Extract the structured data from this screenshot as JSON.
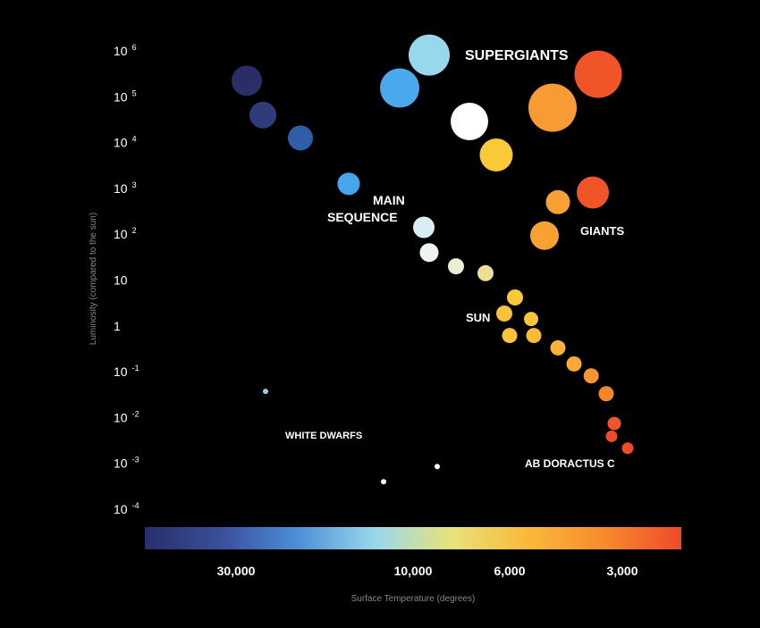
{
  "chart_data": {
    "type": "scatter",
    "title": "",
    "xlabel": "Surface Temperature (degrees)",
    "ylabel": "Luminosity (compared to the sun)",
    "y_scale": "log",
    "ylim_log10": [
      -4,
      6
    ],
    "y_ticks": [
      {
        "base": "10",
        "exp": "6"
      },
      {
        "base": "10",
        "exp": "5"
      },
      {
        "base": "10",
        "exp": "4"
      },
      {
        "base": "10",
        "exp": "3"
      },
      {
        "base": "10",
        "exp": "2"
      },
      {
        "base": "10",
        "exp": ""
      },
      {
        "base": "1",
        "exp": ""
      },
      {
        "base": "10",
        "exp": "-1"
      },
      {
        "base": "10",
        "exp": "-2"
      },
      {
        "base": "10",
        "exp": "-3"
      },
      {
        "base": "10",
        "exp": "-4"
      }
    ],
    "x_scale": "color-index",
    "x_ticks": [
      "30,000",
      "10,000",
      "6,000",
      "3,000"
    ],
    "x_tick_positions": [
      0.17,
      0.5,
      0.68,
      0.89
    ],
    "colorbar": [
      "#2a2e6b",
      "#3a4f9c",
      "#4d8fd6",
      "#98d8ec",
      "#e8e27a",
      "#f9b93a",
      "#f78a2e",
      "#ef4a2a"
    ],
    "labels": {
      "supergiants": "SUPERGIANTS",
      "main_sequence_line1": "MAIN",
      "main_sequence_line2": "SEQUENCE",
      "giants": "GIANTS",
      "sun": "SUN",
      "white_dwarfs": "WHITE DWARFS",
      "ab_doractus_c": "AB DORACTUS C"
    },
    "series": [
      {
        "name": "Main Sequence",
        "points": [
          {
            "t": 0.19,
            "logL": 5.35,
            "size": 17,
            "color": "#2b2e66"
          },
          {
            "t": 0.22,
            "logL": 4.6,
            "size": 15,
            "color": "#2f3b7a"
          },
          {
            "t": 0.29,
            "logL": 4.1,
            "size": 14,
            "color": "#2f5da8"
          },
          {
            "t": 0.38,
            "logL": 3.1,
            "size": 12.5,
            "color": "#46a6ec"
          },
          {
            "t": 0.52,
            "logL": 2.15,
            "size": 12,
            "color": "#d8eef6"
          },
          {
            "t": 0.53,
            "logL": 1.6,
            "size": 10.5,
            "color": "#eef4f2"
          },
          {
            "t": 0.58,
            "logL": 1.3,
            "size": 9,
            "color": "#eeeed6"
          },
          {
            "t": 0.635,
            "logL": 1.15,
            "size": 9,
            "color": "#ecdf96"
          },
          {
            "t": 0.69,
            "logL": 0.62,
            "size": 9,
            "color": "#f9c93a"
          },
          {
            "t": 0.67,
            "logL": 0.27,
            "size": 9,
            "color": "#f9c23a"
          },
          {
            "t": 0.72,
            "logL": 0.15,
            "size": 8,
            "color": "#f9c33a"
          },
          {
            "t": 0.68,
            "logL": -0.21,
            "size": 8.5,
            "color": "#f9c33a"
          },
          {
            "t": 0.725,
            "logL": -0.21,
            "size": 8.5,
            "color": "#f9bb37"
          },
          {
            "t": 0.77,
            "logL": -0.48,
            "size": 8.5,
            "color": "#f9b437"
          },
          {
            "t": 0.8,
            "logL": -0.83,
            "size": 8.5,
            "color": "#f9aa34"
          },
          {
            "t": 0.832,
            "logL": -1.09,
            "size": 8.5,
            "color": "#f7962f"
          },
          {
            "t": 0.86,
            "logL": -1.48,
            "size": 8.5,
            "color": "#f6852c"
          },
          {
            "t": 0.875,
            "logL": -2.13,
            "size": 7.5,
            "color": "#f0552a"
          },
          {
            "t": 0.87,
            "logL": -2.41,
            "size": 6.5,
            "color": "#ef4a2a"
          },
          {
            "t": 0.9,
            "logL": -2.67,
            "size": 6.5,
            "color": "#ef4a2a"
          }
        ]
      },
      {
        "name": "Supergiants",
        "points": [
          {
            "t": 0.53,
            "logL": 5.91,
            "size": 23,
            "color": "#98d8ec"
          },
          {
            "t": 0.475,
            "logL": 5.19,
            "size": 22,
            "color": "#4aa8ec"
          },
          {
            "t": 0.605,
            "logL": 4.46,
            "size": 21,
            "color": "#ffffff"
          },
          {
            "t": 0.655,
            "logL": 3.73,
            "size": 18.5,
            "color": "#f9c93a"
          },
          {
            "t": 0.76,
            "logL": 4.76,
            "size": 27,
            "color": "#f99b34"
          },
          {
            "t": 0.845,
            "logL": 5.49,
            "size": 26.5,
            "color": "#f0552a"
          }
        ]
      },
      {
        "name": "Giants",
        "points": [
          {
            "t": 0.77,
            "logL": 2.7,
            "size": 13.5,
            "color": "#f9a133"
          },
          {
            "t": 0.835,
            "logL": 2.91,
            "size": 18,
            "color": "#f0552a"
          },
          {
            "t": 0.745,
            "logL": 1.97,
            "size": 16,
            "color": "#f9a133"
          }
        ]
      },
      {
        "name": "White Dwarfs",
        "points": [
          {
            "t": 0.225,
            "logL": -1.43,
            "size": 3,
            "color": "#8fd3ea"
          },
          {
            "t": 0.445,
            "logL": -3.4,
            "size": 3,
            "color": "#ffffff"
          },
          {
            "t": 0.545,
            "logL": -3.07,
            "size": 3,
            "color": "#ffffff"
          }
        ]
      }
    ]
  }
}
